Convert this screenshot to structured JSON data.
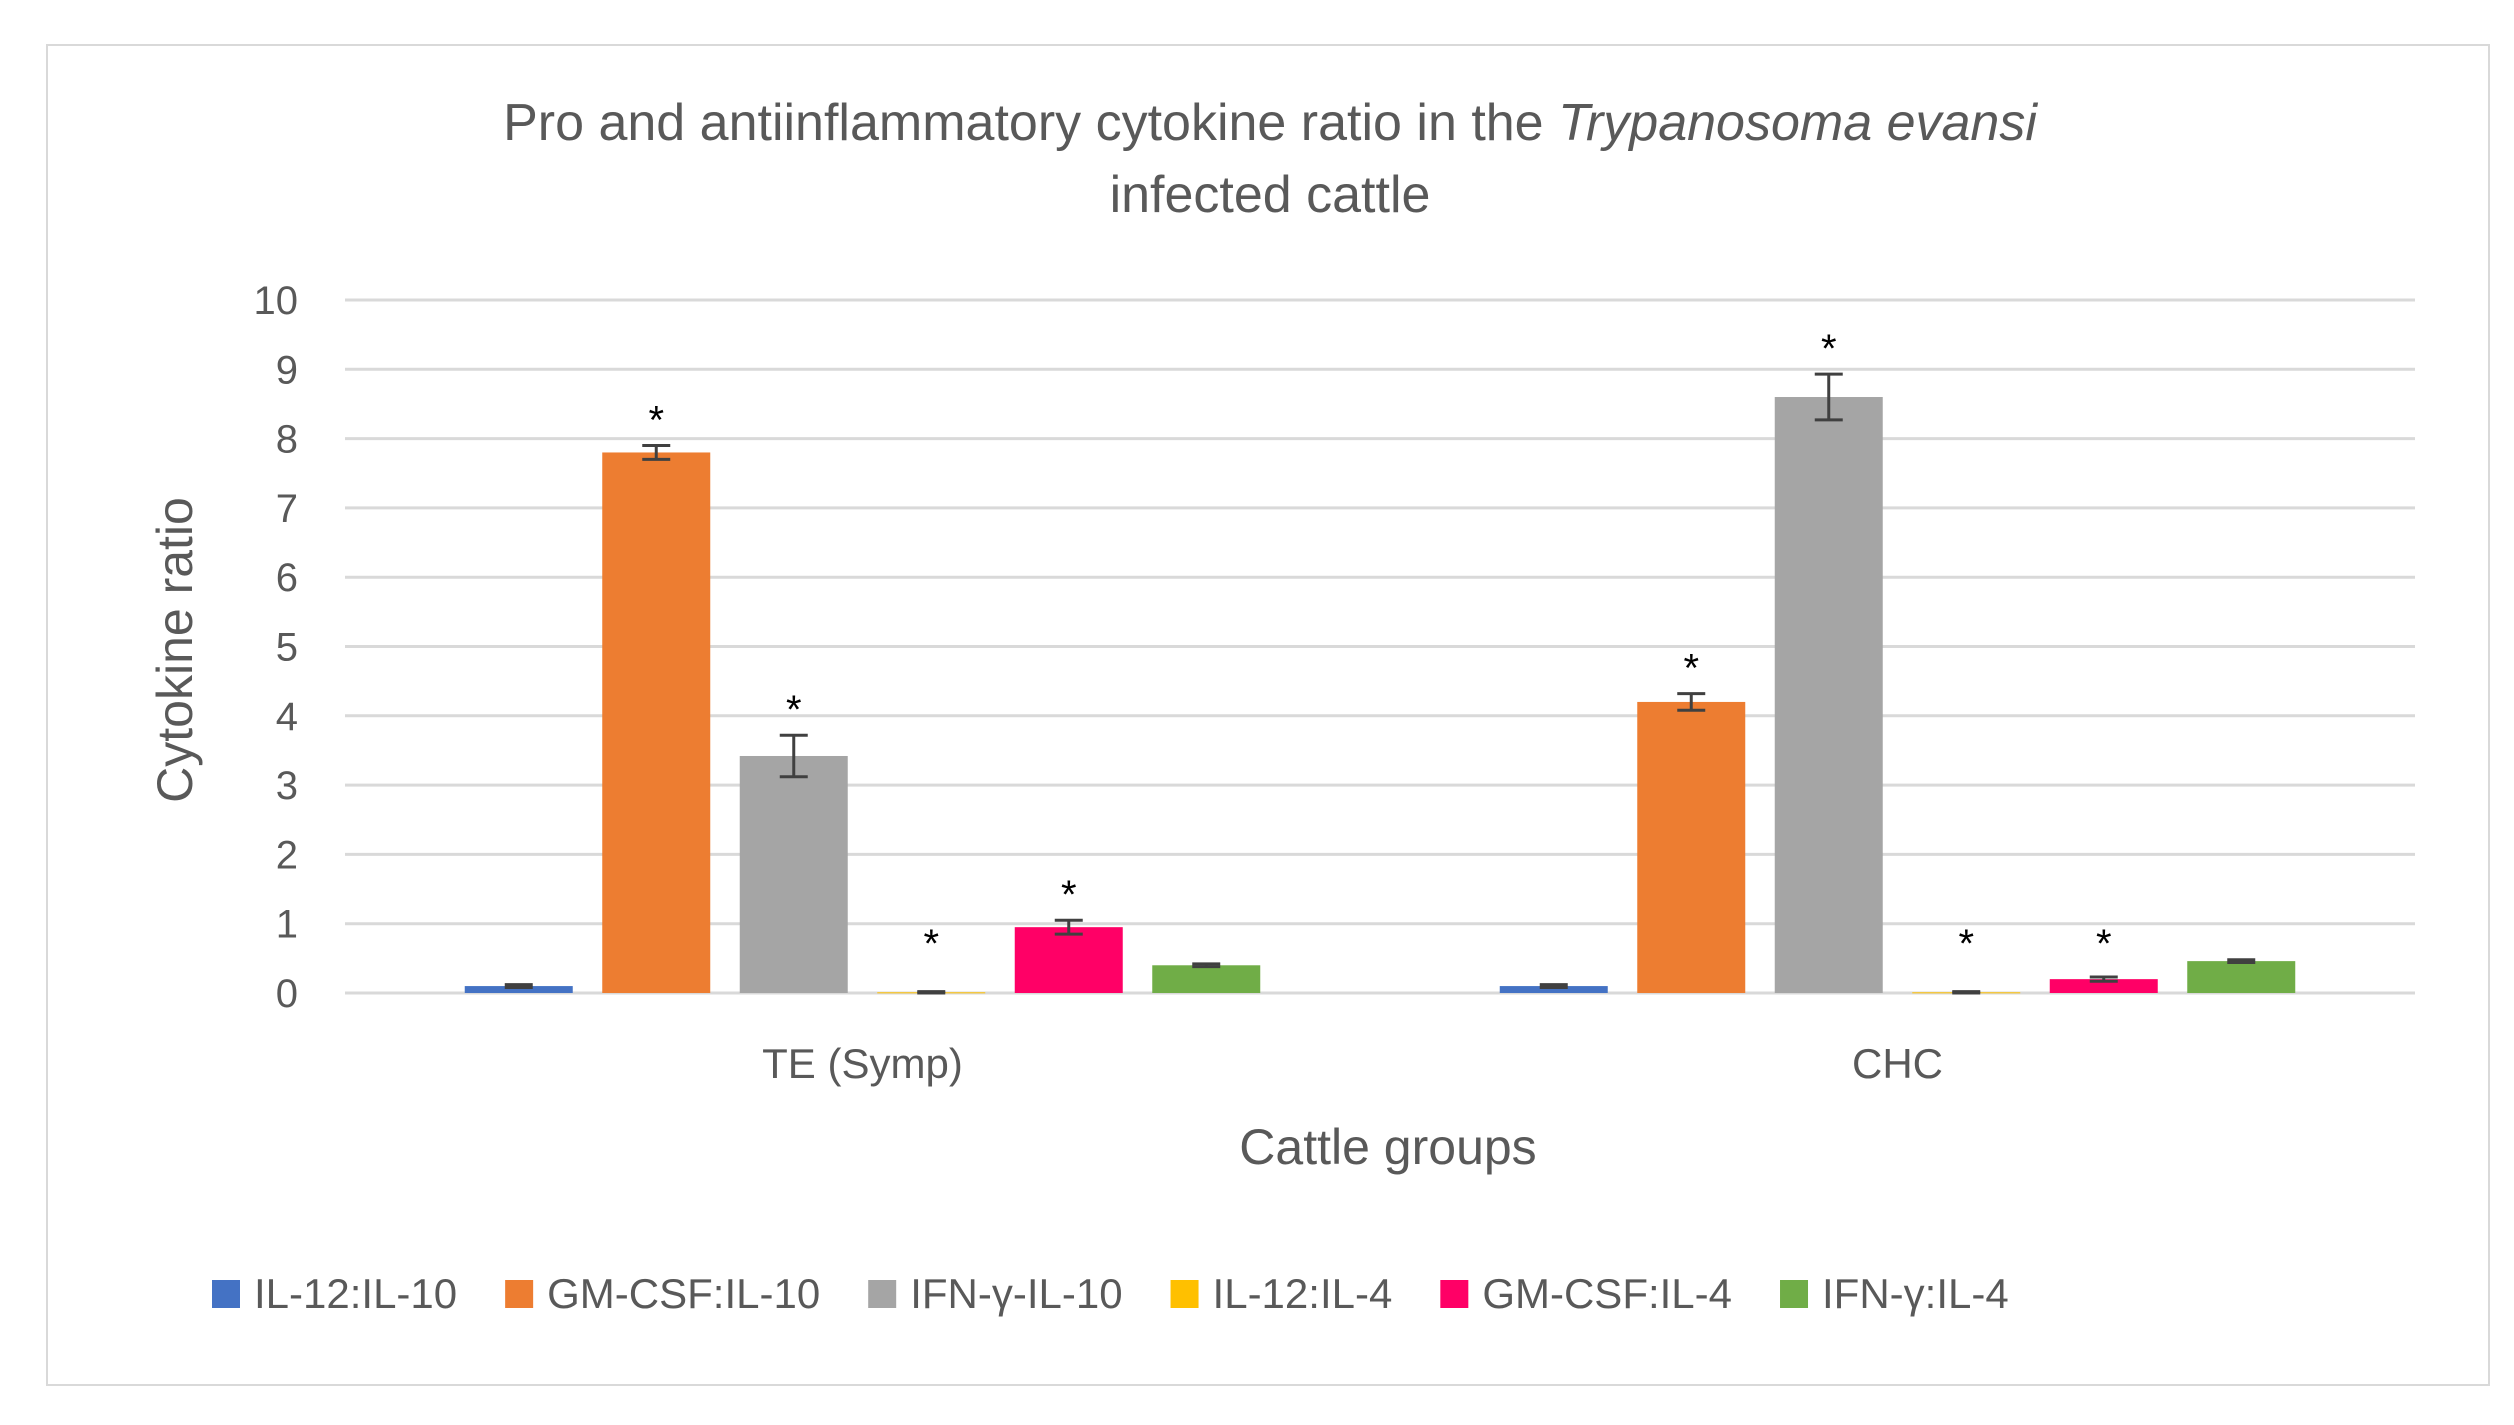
{
  "chart_data": {
    "type": "bar",
    "title_line1": "Pro and antiinflammatory cytokine ratio in the ",
    "title_italic": "Trypanosoma evansi",
    "title_line2": "infected cattle",
    "xlabel": "Cattle groups",
    "ylabel": "Cytokine ratio",
    "ylim": [
      0,
      10
    ],
    "yticks": [
      "0",
      "1",
      "2",
      "3",
      "4",
      "5",
      "6",
      "7",
      "8",
      "9",
      "10"
    ],
    "grid": true,
    "legend_position": "bottom",
    "categories": [
      "TE (Symp)",
      "CHC"
    ],
    "series": [
      {
        "name": "IL-12:IL-10",
        "color": "#4472C4",
        "values": [
          0.1,
          0.1
        ],
        "errors": [
          0.02,
          0.02
        ],
        "significant": [
          false,
          false
        ]
      },
      {
        "name": "GM-CSF:IL-10",
        "color": "#ED7D31",
        "values": [
          7.8,
          4.2
        ],
        "errors": [
          0.1,
          0.12
        ],
        "significant": [
          true,
          true
        ]
      },
      {
        "name": "IFN-γ-IL-10",
        "color": "#A5A5A5",
        "values": [
          3.42,
          8.6
        ],
        "errors": [
          0.3,
          0.33
        ],
        "significant": [
          true,
          true
        ]
      },
      {
        "name": "IL-12:IL-4",
        "color": "#FFC000",
        "values": [
          0.01,
          0.01
        ],
        "errors": [
          0.01,
          0.01
        ],
        "significant": [
          true,
          true
        ]
      },
      {
        "name": "GM-CSF:IL-4",
        "color": "#FF0066",
        "values": [
          0.95,
          0.2
        ],
        "errors": [
          0.1,
          0.03
        ],
        "significant": [
          true,
          true
        ]
      },
      {
        "name": "IFN-γ:IL-4",
        "color": "#70AD47",
        "values": [
          0.4,
          0.46
        ],
        "errors": [
          0.02,
          0.02
        ],
        "significant": [
          false,
          false
        ]
      }
    ],
    "significance_marker": "*"
  }
}
